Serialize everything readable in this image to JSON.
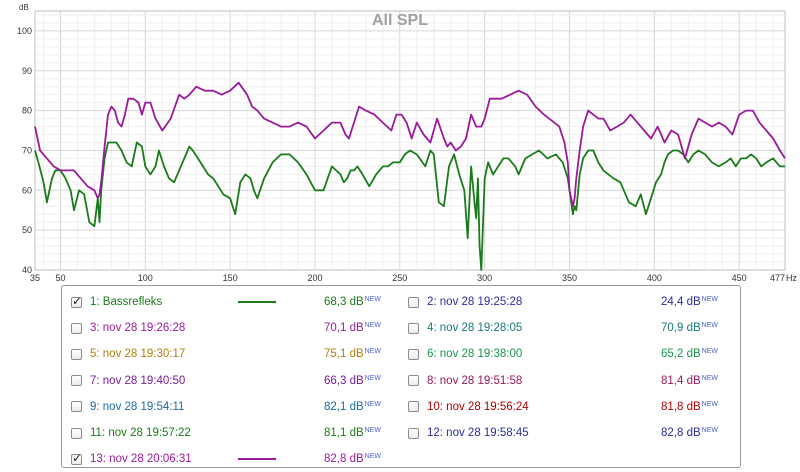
{
  "chart_data": {
    "type": "line",
    "title": "All SPL",
    "ylabel": "dB",
    "xunit": "Hz",
    "xlim": [
      35,
      477
    ],
    "ylim": [
      40,
      105
    ],
    "x_ticks": [
      "35",
      "50",
      "100",
      "150",
      "200",
      "250",
      "300",
      "350",
      "400",
      "450",
      "477"
    ],
    "y_ticks": [
      "40",
      "50",
      "60",
      "70",
      "80",
      "90",
      "100"
    ],
    "grid": true,
    "series": [
      {
        "name": "1: Bassrefleks",
        "color": "#1b7a1b",
        "x": [
          35,
          37,
          40,
          42,
          45,
          47,
          50,
          53,
          56,
          58,
          61,
          64,
          67,
          70,
          72,
          73,
          74,
          75,
          76,
          78,
          80,
          83,
          86,
          89,
          92,
          95,
          98,
          100,
          103,
          106,
          108,
          111,
          114,
          117,
          120,
          123,
          126,
          128,
          131,
          134,
          137,
          140,
          143,
          146,
          150,
          153,
          156,
          159,
          162,
          164,
          166,
          170,
          175,
          180,
          185,
          190,
          195,
          200,
          205,
          210,
          215,
          217,
          219,
          220,
          221,
          223,
          225,
          228,
          232,
          236,
          238,
          240,
          243,
          246,
          250,
          253,
          256,
          260,
          265,
          268,
          270,
          273,
          276,
          279,
          282,
          285,
          288,
          290,
          292,
          294,
          295,
          296,
          297,
          298,
          300,
          302,
          305,
          308,
          311,
          314,
          316,
          318,
          320,
          324,
          328,
          332,
          337,
          342,
          346,
          349,
          350,
          351,
          352,
          353,
          354,
          356,
          358,
          361,
          364,
          367,
          370,
          373,
          376,
          380,
          385,
          389,
          392,
          395,
          398,
          401,
          404,
          406,
          408,
          411,
          414,
          417,
          420,
          423,
          426,
          430,
          434,
          438,
          442,
          445,
          448,
          451,
          454,
          457,
          460,
          463,
          466,
          470,
          474,
          477
        ],
        "y": [
          70,
          67,
          62,
          57,
          63,
          65,
          65,
          63,
          60,
          55,
          60,
          59,
          52,
          51,
          58,
          52,
          60,
          64,
          68,
          72,
          72,
          72,
          70,
          67,
          66,
          72,
          71,
          66,
          64,
          66,
          70,
          66,
          63,
          62,
          65,
          68,
          71,
          70,
          68,
          66,
          64,
          63,
          61,
          59,
          58,
          54,
          62,
          64,
          63,
          60,
          58,
          63,
          67,
          69,
          69,
          67,
          64,
          60,
          60,
          66,
          64,
          62,
          63,
          64,
          65,
          65,
          66,
          64,
          61,
          64,
          65,
          66,
          66,
          67,
          67,
          69,
          70,
          69,
          66,
          70,
          69,
          57,
          56,
          66,
          69,
          64,
          60,
          48,
          66,
          57,
          53,
          63,
          46,
          40,
          63,
          67,
          64,
          66,
          68,
          68,
          67,
          66,
          64,
          68,
          69,
          70,
          68,
          69,
          67,
          63,
          60,
          57,
          54,
          56,
          55,
          64,
          68,
          70,
          70,
          67,
          65,
          64,
          63,
          62,
          57,
          56,
          59,
          54,
          58,
          62,
          64,
          67,
          69,
          70,
          70,
          69,
          67,
          69,
          70,
          69,
          67,
          66,
          67,
          68,
          66,
          68,
          68,
          69,
          68,
          66,
          67,
          68,
          66,
          66
        ]
      },
      {
        "name": "13: nov 28 20:06:31",
        "color": "#9a1a9a",
        "x": [
          35,
          38,
          42,
          46,
          50,
          54,
          58,
          62,
          66,
          70,
          72,
          73,
          74,
          76,
          78,
          80,
          82,
          84,
          86,
          88,
          90,
          93,
          96,
          98,
          100,
          103,
          106,
          110,
          115,
          120,
          123,
          126,
          130,
          135,
          140,
          145,
          150,
          155,
          160,
          163,
          166,
          170,
          175,
          180,
          185,
          190,
          195,
          200,
          205,
          210,
          215,
          218,
          220,
          223,
          226,
          230,
          235,
          240,
          245,
          248,
          251,
          254,
          257,
          260,
          264,
          268,
          272,
          276,
          278,
          280,
          283,
          286,
          289,
          292,
          295,
          298,
          300,
          303,
          306,
          310,
          315,
          320,
          325,
          330,
          335,
          338,
          341,
          344,
          347,
          349,
          350,
          351,
          352,
          353,
          354,
          356,
          358,
          361,
          364,
          367,
          370,
          374,
          378,
          382,
          386,
          390,
          394,
          398,
          402,
          406,
          410,
          414,
          418,
          422,
          426,
          430,
          434,
          438,
          442,
          446,
          450,
          454,
          458,
          462,
          466,
          470,
          474,
          477
        ],
        "y": [
          76,
          70,
          68,
          66,
          65,
          65,
          65,
          63,
          61,
          60,
          58,
          59,
          62,
          71,
          79,
          81,
          80,
          77,
          76,
          79,
          83,
          83,
          82,
          79,
          82,
          82,
          78,
          75,
          78,
          84,
          83,
          84,
          86,
          85,
          85,
          84,
          85,
          87,
          84,
          81,
          80,
          78,
          77,
          76,
          76,
          77,
          76,
          73,
          75,
          77,
          77,
          74,
          73,
          77,
          81,
          80,
          79,
          77,
          75,
          79,
          79,
          77,
          73,
          77,
          74,
          72,
          78,
          73,
          71,
          72,
          70,
          71,
          73,
          79,
          76,
          76,
          78,
          83,
          83,
          83,
          84,
          85,
          84,
          81,
          79,
          78,
          77,
          76,
          72,
          67,
          60,
          58,
          56,
          58,
          63,
          70,
          76,
          80,
          79,
          78,
          78,
          75,
          76,
          77,
          79,
          77,
          75,
          73,
          76,
          72,
          75,
          74,
          68,
          74,
          78,
          77,
          76,
          77,
          76,
          74,
          79,
          80,
          80,
          77,
          75,
          73,
          70,
          68
        ]
      }
    ]
  },
  "legend": {
    "items": [
      {
        "label": "1: Bassrefleks",
        "value": "68,3 dB",
        "checked": true,
        "color": "#1b7a1b"
      },
      {
        "label": "2: nov 28 19:25:28",
        "value": "24,4 dB",
        "checked": false,
        "color": "#2b2b9e"
      },
      {
        "label": "3: nov 28 19:26:28",
        "value": "70,1 dB",
        "checked": false,
        "color": "#9a1a9a"
      },
      {
        "label": "4: nov 28 19:28:05",
        "value": "70,9 dB",
        "checked": false,
        "color": "#1a7a7a"
      },
      {
        "label": "5: nov 28 19:30:17",
        "value": "75,1 dB",
        "checked": false,
        "color": "#b07f0a"
      },
      {
        "label": "6: nov 28 19:38:00",
        "value": "65,2 dB",
        "checked": false,
        "color": "#16964a"
      },
      {
        "label": "7: nov 28 19:40:50",
        "value": "66,3 dB",
        "checked": false,
        "color": "#7a1a9a"
      },
      {
        "label": "8: nov 28 19:51:58",
        "value": "81,4 dB",
        "checked": false,
        "color": "#9a1a5a"
      },
      {
        "label": "9: nov 28 19:54:11",
        "value": "82,1 dB",
        "checked": false,
        "color": "#1a6aa0"
      },
      {
        "label": "10: nov 28 19:56:24",
        "value": "81,8 dB",
        "checked": false,
        "color": "#b00000"
      },
      {
        "label": "11: nov 28 19:57:22",
        "value": "81,1 dB",
        "checked": false,
        "color": "#1b7a1b"
      },
      {
        "label": "12: nov 28 19:58:45",
        "value": "82,8 dB",
        "checked": false,
        "color": "#2b2b9e"
      },
      {
        "label": "13: nov 28 20:06:31",
        "value": "82,8 dB",
        "checked": true,
        "color": "#9a1a9a"
      }
    ],
    "new_badge": "NEW"
  }
}
